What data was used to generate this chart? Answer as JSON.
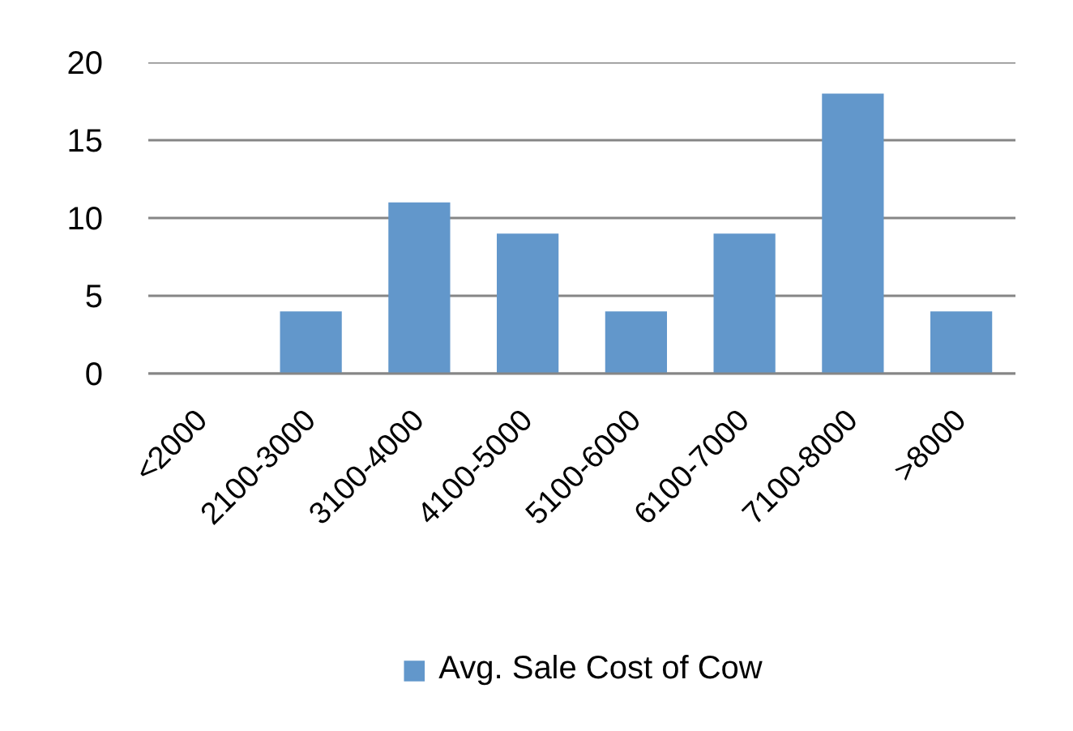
{
  "chart_data": {
    "type": "bar",
    "categories": [
      "<2000",
      "2100-3000",
      "3100-4000",
      "4100-5000",
      "5100-6000",
      "6100-7000",
      "7100-8000",
      ">8000"
    ],
    "series": [
      {
        "name": "Avg. Sale Cost of Cow",
        "color": "#6297cb",
        "values": [
          0,
          4,
          11,
          9,
          4,
          9,
          18,
          4
        ]
      }
    ],
    "ylim": [
      0,
      20
    ],
    "yticks": [
      0,
      5,
      10,
      15,
      20
    ],
    "grid": "y",
    "legend": "bottom"
  }
}
